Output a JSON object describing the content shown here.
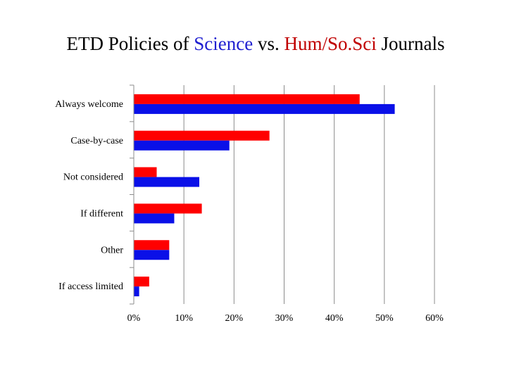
{
  "chart_data": {
    "type": "bar",
    "orientation": "horizontal",
    "title_parts": [
      {
        "text": "ETD Policies of ",
        "color": "#000000"
      },
      {
        "text": "Science",
        "color": "#1f1fd0"
      },
      {
        "text": " vs. ",
        "color": "#000000"
      },
      {
        "text": "Hum/So.Sci",
        "color": "#c00000"
      },
      {
        "text": " Journals",
        "color": "#000000"
      }
    ],
    "categories": [
      "Always welcome",
      "Case-by-case",
      "Not considered",
      "If different",
      "Other",
      "If access limited"
    ],
    "series": [
      {
        "name": "Hum/So.Sci",
        "color": "#ff0000",
        "values": [
          45,
          27,
          4.5,
          13.5,
          7,
          3
        ]
      },
      {
        "name": "Science",
        "color": "#0a10e8",
        "values": [
          52,
          19,
          13,
          8,
          7,
          1
        ]
      }
    ],
    "xlim": [
      0,
      60
    ],
    "xticks": [
      0,
      10,
      20,
      30,
      40,
      50,
      60
    ],
    "xtick_labels": [
      "0%",
      "10%",
      "20%",
      "30%",
      "40%",
      "50%",
      "60%"
    ],
    "grid": true,
    "legend": "none"
  }
}
